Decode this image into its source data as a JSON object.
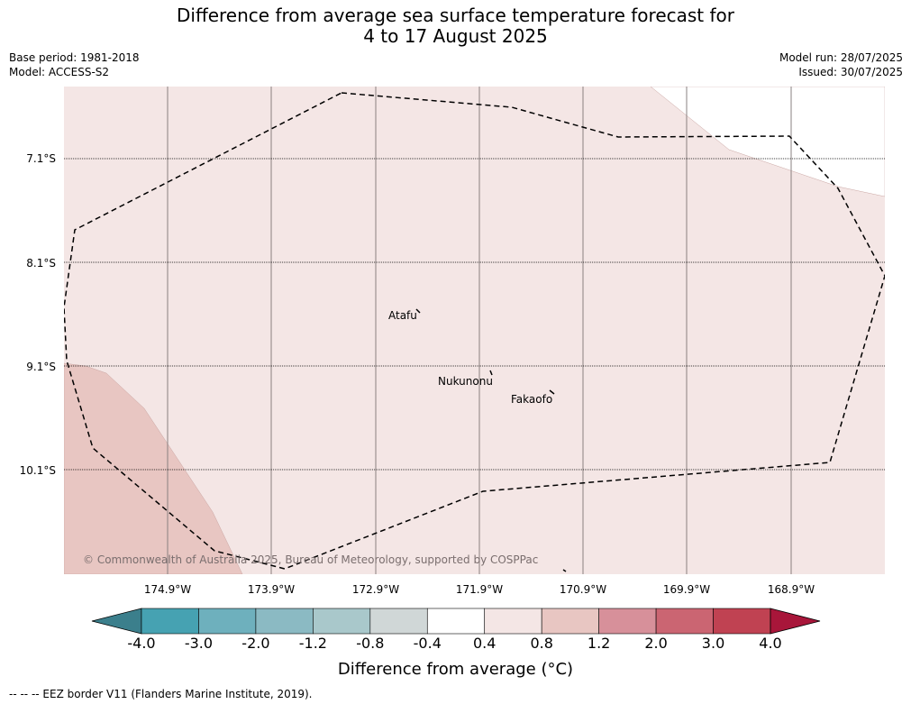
{
  "title_line1": "Difference from average sea surface temperature forecast for",
  "title_line2": "4 to 17 August 2025",
  "base_period": "Base period: 1981-2018",
  "model": "Model: ACCESS-S2",
  "model_run": "Model run: 28/07/2025",
  "issued": "Issued: 30/07/2025",
  "lat_labels": [
    "7.1°S",
    "8.1°S",
    "9.1°S",
    "10.1°S"
  ],
  "lon_labels": [
    "174.9°W",
    "173.9°W",
    "172.9°W",
    "171.9°W",
    "170.9°W",
    "169.9°W",
    "168.9°W"
  ],
  "places": {
    "atafu": "Atafu",
    "nukunonu": "Nukunonu",
    "fakaofo": "Fakaofo"
  },
  "copyright": "© Commonwealth of Australia 2025, Bureau of Meteorology, supported by COSPPac",
  "colorbar": {
    "ticks": [
      "-4.0",
      "-3.0",
      "-2.0",
      "-1.2",
      "-0.8",
      "-0.4",
      "0.4",
      "0.8",
      "1.2",
      "2.0",
      "3.0",
      "4.0"
    ],
    "colors": [
      "#3b7f8c",
      "#46a2b2",
      "#6eb0bd",
      "#8bbac3",
      "#a9c8cb",
      "#d0d7d7",
      "#ffffff",
      "#f4e6e5",
      "#e8c6c2",
      "#d7909a",
      "#cb6572",
      "#c04252",
      "#a8163a"
    ],
    "label": "Difference from average (°C)"
  },
  "footnote": "--  --  -- EEZ border V11 (Flanders Marine Institute, 2019).",
  "map_colors": {
    "ocean_light": "#f4e6e5",
    "ocean_warm": "#e8c6c2",
    "land": "#ffffff"
  }
}
